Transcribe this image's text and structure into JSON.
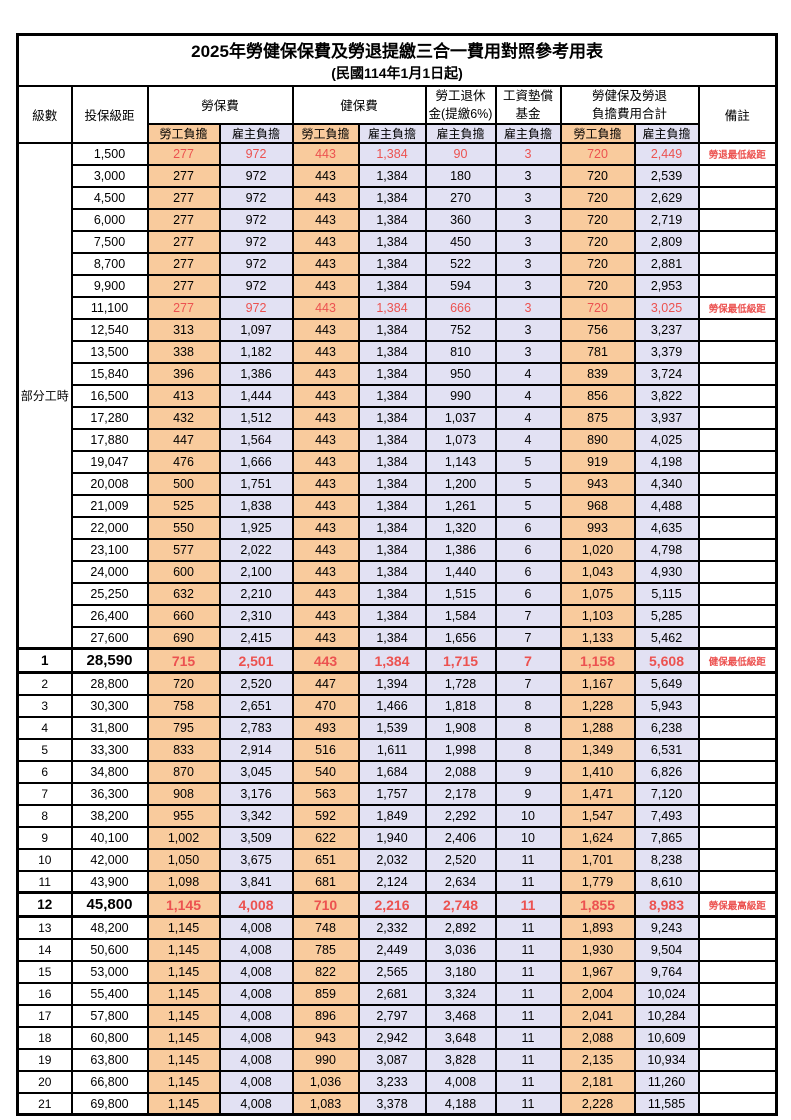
{
  "title": {
    "main": "2025年勞健保保費及勞退提繳三合一費用對照參考用表",
    "sub": "(民國114年1月1日起)"
  },
  "colors": {
    "employee_bg": "#f9cb9d",
    "employer_bg": "#e2e1f3",
    "highlight_text": "#ec5250",
    "border": "#000000"
  },
  "table": {
    "headers": {
      "level": "級數",
      "bracket": "投保級距",
      "labor_group": "勞保費",
      "health_group": "健保費",
      "pension_line1": "勞工退休",
      "pension_line2": "金(提繳6%)",
      "fund_line1": "工資墊償",
      "fund_line2": "基金",
      "total_line1": "勞健保及勞退",
      "total_line2": "負擔費用合計",
      "remark": "備註",
      "employee": "勞工負擔",
      "employer": "雇主負擔"
    },
    "part_time_label": "部分工時",
    "part_time_rowspan": 23,
    "columns": [
      "level",
      "bracket",
      "labor_emp",
      "labor_er",
      "health_emp",
      "health_er",
      "pension_er",
      "fund_er",
      "total_emp",
      "total_er",
      "remark",
      "style"
    ],
    "rows": [
      [
        "",
        "1,500",
        "277",
        "972",
        "443",
        "1,384",
        "90",
        "3",
        "720",
        "2,449",
        "勞退最低級距",
        "hl"
      ],
      [
        "",
        "3,000",
        "277",
        "972",
        "443",
        "1,384",
        "180",
        "3",
        "720",
        "2,539",
        "",
        ""
      ],
      [
        "",
        "4,500",
        "277",
        "972",
        "443",
        "1,384",
        "270",
        "3",
        "720",
        "2,629",
        "",
        ""
      ],
      [
        "",
        "6,000",
        "277",
        "972",
        "443",
        "1,384",
        "360",
        "3",
        "720",
        "2,719",
        "",
        ""
      ],
      [
        "",
        "7,500",
        "277",
        "972",
        "443",
        "1,384",
        "450",
        "3",
        "720",
        "2,809",
        "",
        ""
      ],
      [
        "",
        "8,700",
        "277",
        "972",
        "443",
        "1,384",
        "522",
        "3",
        "720",
        "2,881",
        "",
        ""
      ],
      [
        "",
        "9,900",
        "277",
        "972",
        "443",
        "1,384",
        "594",
        "3",
        "720",
        "2,953",
        "",
        ""
      ],
      [
        "",
        "11,100",
        "277",
        "972",
        "443",
        "1,384",
        "666",
        "3",
        "720",
        "3,025",
        "勞保最低級距",
        "hl"
      ],
      [
        "",
        "12,540",
        "313",
        "1,097",
        "443",
        "1,384",
        "752",
        "3",
        "756",
        "3,237",
        "",
        ""
      ],
      [
        "",
        "13,500",
        "338",
        "1,182",
        "443",
        "1,384",
        "810",
        "3",
        "781",
        "3,379",
        "",
        ""
      ],
      [
        "",
        "15,840",
        "396",
        "1,386",
        "443",
        "1,384",
        "950",
        "4",
        "839",
        "3,724",
        "",
        ""
      ],
      [
        "",
        "16,500",
        "413",
        "1,444",
        "443",
        "1,384",
        "990",
        "4",
        "856",
        "3,822",
        "",
        ""
      ],
      [
        "",
        "17,280",
        "432",
        "1,512",
        "443",
        "1,384",
        "1,037",
        "4",
        "875",
        "3,937",
        "",
        ""
      ],
      [
        "",
        "17,880",
        "447",
        "1,564",
        "443",
        "1,384",
        "1,073",
        "4",
        "890",
        "4,025",
        "",
        ""
      ],
      [
        "",
        "19,047",
        "476",
        "1,666",
        "443",
        "1,384",
        "1,143",
        "5",
        "919",
        "4,198",
        "",
        ""
      ],
      [
        "",
        "20,008",
        "500",
        "1,751",
        "443",
        "1,384",
        "1,200",
        "5",
        "943",
        "4,340",
        "",
        ""
      ],
      [
        "",
        "21,009",
        "525",
        "1,838",
        "443",
        "1,384",
        "1,261",
        "5",
        "968",
        "4,488",
        "",
        ""
      ],
      [
        "",
        "22,000",
        "550",
        "1,925",
        "443",
        "1,384",
        "1,320",
        "6",
        "993",
        "4,635",
        "",
        ""
      ],
      [
        "",
        "23,100",
        "577",
        "2,022",
        "443",
        "1,384",
        "1,386",
        "6",
        "1,020",
        "4,798",
        "",
        ""
      ],
      [
        "",
        "24,000",
        "600",
        "2,100",
        "443",
        "1,384",
        "1,440",
        "6",
        "1,043",
        "4,930",
        "",
        ""
      ],
      [
        "",
        "25,250",
        "632",
        "2,210",
        "443",
        "1,384",
        "1,515",
        "6",
        "1,075",
        "5,115",
        "",
        ""
      ],
      [
        "",
        "26,400",
        "660",
        "2,310",
        "443",
        "1,384",
        "1,584",
        "7",
        "1,103",
        "5,285",
        "",
        ""
      ],
      [
        "",
        "27,600",
        "690",
        "2,415",
        "443",
        "1,384",
        "1,656",
        "7",
        "1,133",
        "5,462",
        "",
        ""
      ],
      [
        "1",
        "28,590",
        "715",
        "2,501",
        "443",
        "1,384",
        "1,715",
        "7",
        "1,158",
        "5,608",
        "健保最低級距",
        "hlb"
      ],
      [
        "2",
        "28,800",
        "720",
        "2,520",
        "447",
        "1,394",
        "1,728",
        "7",
        "1,167",
        "5,649",
        "",
        ""
      ],
      [
        "3",
        "30,300",
        "758",
        "2,651",
        "470",
        "1,466",
        "1,818",
        "8",
        "1,228",
        "5,943",
        "",
        ""
      ],
      [
        "4",
        "31,800",
        "795",
        "2,783",
        "493",
        "1,539",
        "1,908",
        "8",
        "1,288",
        "6,238",
        "",
        ""
      ],
      [
        "5",
        "33,300",
        "833",
        "2,914",
        "516",
        "1,611",
        "1,998",
        "8",
        "1,349",
        "6,531",
        "",
        ""
      ],
      [
        "6",
        "34,800",
        "870",
        "3,045",
        "540",
        "1,684",
        "2,088",
        "9",
        "1,410",
        "6,826",
        "",
        ""
      ],
      [
        "7",
        "36,300",
        "908",
        "3,176",
        "563",
        "1,757",
        "2,178",
        "9",
        "1,471",
        "7,120",
        "",
        ""
      ],
      [
        "8",
        "38,200",
        "955",
        "3,342",
        "592",
        "1,849",
        "2,292",
        "10",
        "1,547",
        "7,493",
        "",
        ""
      ],
      [
        "9",
        "40,100",
        "1,002",
        "3,509",
        "622",
        "1,940",
        "2,406",
        "10",
        "1,624",
        "7,865",
        "",
        ""
      ],
      [
        "10",
        "42,000",
        "1,050",
        "3,675",
        "651",
        "2,032",
        "2,520",
        "11",
        "1,701",
        "8,238",
        "",
        ""
      ],
      [
        "11",
        "43,900",
        "1,098",
        "3,841",
        "681",
        "2,124",
        "2,634",
        "11",
        "1,779",
        "8,610",
        "",
        ""
      ],
      [
        "12",
        "45,800",
        "1,145",
        "4,008",
        "710",
        "2,216",
        "2,748",
        "11",
        "1,855",
        "8,983",
        "勞保最高級距",
        "hlb"
      ],
      [
        "13",
        "48,200",
        "1,145",
        "4,008",
        "748",
        "2,332",
        "2,892",
        "11",
        "1,893",
        "9,243",
        "",
        ""
      ],
      [
        "14",
        "50,600",
        "1,145",
        "4,008",
        "785",
        "2,449",
        "3,036",
        "11",
        "1,930",
        "9,504",
        "",
        ""
      ],
      [
        "15",
        "53,000",
        "1,145",
        "4,008",
        "822",
        "2,565",
        "3,180",
        "11",
        "1,967",
        "9,764",
        "",
        ""
      ],
      [
        "16",
        "55,400",
        "1,145",
        "4,008",
        "859",
        "2,681",
        "3,324",
        "11",
        "2,004",
        "10,024",
        "",
        ""
      ],
      [
        "17",
        "57,800",
        "1,145",
        "4,008",
        "896",
        "2,797",
        "3,468",
        "11",
        "2,041",
        "10,284",
        "",
        ""
      ],
      [
        "18",
        "60,800",
        "1,145",
        "4,008",
        "943",
        "2,942",
        "3,648",
        "11",
        "2,088",
        "10,609",
        "",
        ""
      ],
      [
        "19",
        "63,800",
        "1,145",
        "4,008",
        "990",
        "3,087",
        "3,828",
        "11",
        "2,135",
        "10,934",
        "",
        ""
      ],
      [
        "20",
        "66,800",
        "1,145",
        "4,008",
        "1,036",
        "3,233",
        "4,008",
        "11",
        "2,181",
        "11,260",
        "",
        ""
      ],
      [
        "21",
        "69,800",
        "1,145",
        "4,008",
        "1,083",
        "3,378",
        "4,188",
        "11",
        "2,228",
        "11,585",
        "",
        ""
      ]
    ]
  }
}
